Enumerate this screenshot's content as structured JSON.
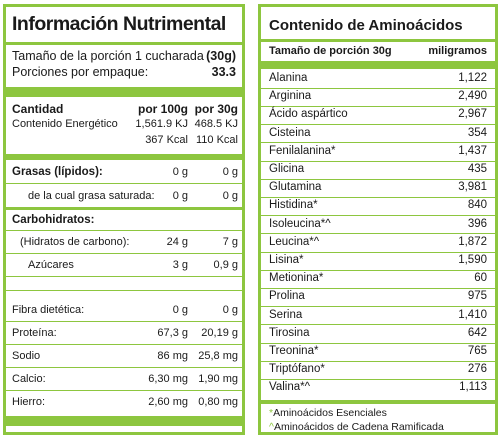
{
  "nutrition": {
    "title": "Información Nutrimental",
    "serving_label": "Tamaño de la porción 1 cucharada",
    "serving_value": "(30g)",
    "portions_label": "Porciones por empaque:",
    "portions_value": "33.3",
    "header": {
      "label": "Cantidad",
      "col1": "por 100g",
      "col2": "por 30g"
    },
    "energy": {
      "label": "Contenido Energético",
      "kj_100": "1,561.9 KJ",
      "kj_30": "468.5 KJ",
      "kcal_100": "367 Kcal",
      "kcal_30": "110 Kcal"
    },
    "fat": {
      "label": "Grasas (lípidos):",
      "v100": "0 g",
      "v30": "0 g"
    },
    "sat_fat": {
      "label": "de la cual grasa saturada:",
      "v100": "0 g",
      "v30": "0 g"
    },
    "carbs": {
      "label": "Carbohidratos:"
    },
    "carb_hydrates": {
      "label": "(Hidratos de carbono):",
      "v100": "24 g",
      "v30": "7 g"
    },
    "sugars": {
      "label": "Azúcares",
      "v100": "3 g",
      "v30": "0,9 g"
    },
    "fiber": {
      "label": "Fibra dietética:",
      "v100": "0 g",
      "v30": "0 g"
    },
    "protein": {
      "label": "Proteína:",
      "v100": "67,3 g",
      "v30": "20,19 g"
    },
    "sodium": {
      "label": "Sodio",
      "v100": "86 mg",
      "v30": "25,8 mg"
    },
    "calcium": {
      "label": "Calcio:",
      "v100": "6,30 mg",
      "v30": "1,90 mg"
    },
    "iron": {
      "label": "Hierro:",
      "v100": "2,60 mg",
      "v30": "0,80 mg"
    }
  },
  "amino": {
    "title": "Contenido de Aminoácidos",
    "col_name": "Tamaño de porción 30g",
    "col_unit": "miligramos",
    "items": [
      {
        "name": "Alanina",
        "value": "1,122"
      },
      {
        "name": "Arginina",
        "value": "2,490"
      },
      {
        "name": "Ácido aspártico",
        "value": "2,967"
      },
      {
        "name": "Cisteina",
        "value": "354"
      },
      {
        "name": "Fenilalanina*",
        "value": "1,437"
      },
      {
        "name": "Glicina",
        "value": "435"
      },
      {
        "name": "Glutamina",
        "value": "3,981"
      },
      {
        "name": "Histidina*",
        "value": "840"
      },
      {
        "name": "Isoleucina*^",
        "value": "396"
      },
      {
        "name": "Leucina*^",
        "value": "1,872"
      },
      {
        "name": "Lisina*",
        "value": "1,590"
      },
      {
        "name": "Metionina*",
        "value": "60"
      },
      {
        "name": "Prolina",
        "value": "975"
      },
      {
        "name": "Serina",
        "value": "1,410"
      },
      {
        "name": "Tirosina",
        "value": "642"
      },
      {
        "name": "Treonina*",
        "value": "765"
      },
      {
        "name": "Triptófano*",
        "value": "276"
      },
      {
        "name": "Valina*^",
        "value": "1,113"
      }
    ],
    "footnote1_mark": "*",
    "footnote1_text": "Aminoácidos Esenciales",
    "footnote2_mark": "^",
    "footnote2_text": "Aminoácidos de Cadena Ramificada"
  },
  "colors": {
    "accent": "#8dc63f",
    "text": "#1a1a1a"
  }
}
